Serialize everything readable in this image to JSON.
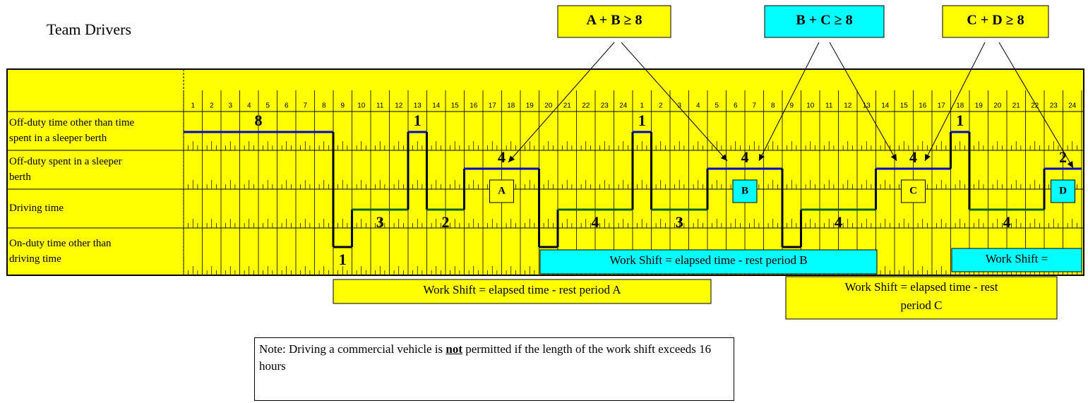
{
  "title": "Team Drivers",
  "rows": [
    [
      "Off-duty time other than time",
      "spent in a sleeper berth"
    ],
    [
      "Off-duty spent in a sleeper",
      "berth"
    ],
    [
      "Driving time"
    ],
    [
      "On-duty time other than",
      "driving time"
    ]
  ],
  "hours": [
    1,
    2,
    3,
    4,
    5,
    6,
    7,
    8,
    9,
    10,
    11,
    12,
    13,
    14,
    15,
    16,
    17,
    18,
    19,
    20,
    21,
    22,
    23,
    24,
    1,
    2,
    3,
    4,
    5,
    6,
    7,
    8,
    9,
    10,
    11,
    12,
    13,
    14,
    15,
    16,
    17,
    18,
    19,
    20,
    21,
    22,
    23,
    24
  ],
  "segments": [
    {
      "row": 0,
      "hours": 8
    },
    {
      "row": 3,
      "hours": 1
    },
    {
      "row": 2,
      "hours": 3
    },
    {
      "row": 0,
      "hours": 1
    },
    {
      "row": 2,
      "hours": 2
    },
    {
      "row": 1,
      "hours": 4,
      "box": {
        "label": "A",
        "color": "#ffff00"
      }
    },
    {
      "row": 3,
      "hours": 1
    },
    {
      "row": 2,
      "hours": 4
    },
    {
      "row": 0,
      "hours": 1
    },
    {
      "row": 2,
      "hours": 3
    },
    {
      "row": 1,
      "hours": 4,
      "box": {
        "label": "B",
        "color": "#00ffff"
      }
    },
    {
      "row": 3,
      "hours": 1
    },
    {
      "row": 2,
      "hours": 4
    },
    {
      "row": 1,
      "hours": 4,
      "box": {
        "label": "C",
        "color": "#ffff00"
      }
    },
    {
      "row": 0,
      "hours": 1
    },
    {
      "row": 2,
      "hours": 4
    },
    {
      "row": 1,
      "hours": 2,
      "box": {
        "label": "D",
        "color": "#00ffff"
      }
    }
  ],
  "rules": [
    {
      "text": "A + B ≥ 8",
      "color": "#ffff00"
    },
    {
      "text": "B + C ≥ 8",
      "color": "#00ffff"
    },
    {
      "text": "C + D ≥ 8",
      "color": "#ffff00"
    }
  ],
  "shifts": [
    {
      "lines": [
        "Work Shift = elapsed time - rest period A"
      ],
      "color": "#ffff00"
    },
    {
      "lines": [
        "Work Shift = elapsed time - rest period B"
      ],
      "color": "#00ffff"
    },
    {
      "lines": [
        "Work Shift = elapsed time - rest",
        "period C"
      ],
      "color": "#ffff00"
    },
    {
      "lines": [
        "Work Shift ="
      ],
      "color": "#00ffff"
    }
  ],
  "note": {
    "before": "Note: Driving a commercial vehicle is ",
    "emphasis": "not",
    "after": " permitted if the length of the work shift exceeds 16 hours"
  }
}
